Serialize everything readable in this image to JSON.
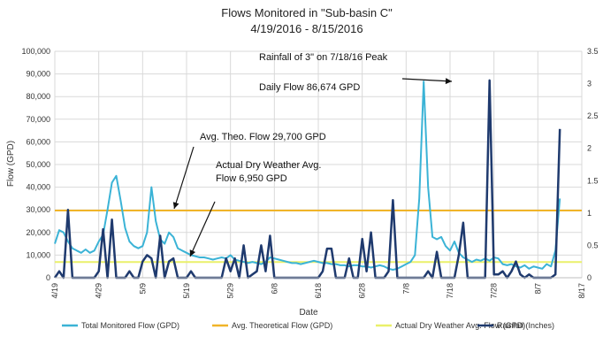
{
  "chart_data": {
    "type": "line",
    "title": "Flows Monitored in \"Sub-basin C\"",
    "subtitle": "4/19/2016 - 8/15/2016",
    "xlabel": "Date",
    "ylabel": "Flow (GPD)",
    "y2label": "",
    "x_ticks": [
      "4/19",
      "4/29",
      "5/9",
      "5/19",
      "5/29",
      "6/8",
      "6/18",
      "6/28",
      "7/8",
      "7/18",
      "7/28",
      "8/7",
      "8/17"
    ],
    "ylim": [
      0,
      100000
    ],
    "y_ticks": [
      "0",
      "10,000",
      "20,000",
      "30,000",
      "40,000",
      "50,000",
      "60,000",
      "70,000",
      "80,000",
      "90,000",
      "100,000"
    ],
    "y2lim": [
      0,
      3.5
    ],
    "y2_ticks": [
      "0",
      "0.5",
      "1",
      "1.5",
      "2",
      "2.5",
      "3",
      "3.5"
    ],
    "grid": true,
    "legend_position": "bottom",
    "series": [
      {
        "name": "Total Monitored Flow (GPD)",
        "axis": "left",
        "color": "#3bb3d6",
        "points": [
          [
            0,
            15000
          ],
          [
            1,
            21000
          ],
          [
            2,
            20000
          ],
          [
            3,
            16000
          ],
          [
            4,
            13000
          ],
          [
            5,
            12000
          ],
          [
            6,
            11000
          ],
          [
            7,
            12500
          ],
          [
            8,
            11000
          ],
          [
            9,
            12000
          ],
          [
            10,
            16000
          ],
          [
            11,
            19000
          ],
          [
            12,
            30000
          ],
          [
            13,
            42000
          ],
          [
            14,
            45000
          ],
          [
            15,
            34000
          ],
          [
            16,
            22000
          ],
          [
            17,
            16000
          ],
          [
            18,
            14000
          ],
          [
            19,
            13000
          ],
          [
            20,
            14000
          ],
          [
            21,
            20000
          ],
          [
            22,
            40000
          ],
          [
            23,
            25000
          ],
          [
            24,
            17000
          ],
          [
            25,
            15000
          ],
          [
            26,
            20000
          ],
          [
            27,
            18000
          ],
          [
            28,
            13000
          ],
          [
            29,
            12000
          ],
          [
            30,
            11000
          ],
          [
            31,
            10000
          ],
          [
            32,
            9500
          ],
          [
            33,
            9000
          ],
          [
            34,
            9000
          ],
          [
            35,
            8500
          ],
          [
            36,
            8000
          ],
          [
            37,
            8500
          ],
          [
            38,
            9000
          ],
          [
            39,
            8500
          ],
          [
            40,
            10000
          ],
          [
            41,
            8000
          ],
          [
            42,
            7500
          ],
          [
            43,
            7000
          ],
          [
            44,
            6500
          ],
          [
            45,
            7000
          ],
          [
            46,
            6500
          ],
          [
            47,
            6000
          ],
          [
            48,
            7000
          ],
          [
            49,
            9000
          ],
          [
            50,
            8500
          ],
          [
            51,
            8000
          ],
          [
            52,
            7500
          ],
          [
            53,
            7000
          ],
          [
            54,
            6500
          ],
          [
            55,
            6500
          ],
          [
            56,
            6000
          ],
          [
            57,
            6500
          ],
          [
            58,
            7000
          ],
          [
            59,
            7500
          ],
          [
            60,
            7000
          ],
          [
            61,
            6500
          ],
          [
            62,
            6500
          ],
          [
            63,
            6000
          ],
          [
            64,
            6000
          ],
          [
            65,
            5500
          ],
          [
            66,
            5500
          ],
          [
            67,
            5000
          ],
          [
            68,
            5500
          ],
          [
            69,
            5500
          ],
          [
            70,
            5000
          ],
          [
            71,
            5000
          ],
          [
            72,
            4500
          ],
          [
            73,
            5000
          ],
          [
            74,
            5500
          ],
          [
            75,
            5000
          ],
          [
            76,
            4000
          ],
          [
            77,
            3500
          ],
          [
            78,
            4000
          ],
          [
            79,
            5000
          ],
          [
            80,
            6000
          ],
          [
            81,
            7000
          ],
          [
            82,
            10000
          ],
          [
            83,
            35000
          ],
          [
            84,
            86674
          ],
          [
            85,
            40000
          ],
          [
            86,
            18000
          ],
          [
            87,
            17000
          ],
          [
            88,
            18000
          ],
          [
            89,
            14000
          ],
          [
            90,
            12000
          ],
          [
            91,
            16000
          ],
          [
            92,
            11000
          ],
          [
            93,
            9000
          ],
          [
            94,
            8000
          ],
          [
            95,
            7000
          ],
          [
            96,
            8000
          ],
          [
            97,
            7500
          ],
          [
            98,
            8500
          ],
          [
            99,
            7500
          ],
          [
            100,
            9000
          ],
          [
            101,
            8500
          ],
          [
            102,
            6000
          ],
          [
            103,
            5500
          ],
          [
            104,
            6000
          ],
          [
            105,
            5000
          ],
          [
            106,
            4500
          ],
          [
            107,
            5500
          ],
          [
            108,
            4000
          ],
          [
            109,
            5000
          ],
          [
            110,
            4500
          ],
          [
            111,
            4000
          ],
          [
            112,
            6000
          ],
          [
            113,
            5000
          ],
          [
            114,
            12000
          ],
          [
            115,
            35000
          ]
        ]
      },
      {
        "name": "Avg. Theoretical Flow (GPD)",
        "axis": "left",
        "color": "#f0b429",
        "constant": 29700
      },
      {
        "name": "Actual Dry Weather Avg. Flow (GPD)",
        "axis": "left",
        "color": "#eaf06a",
        "constant": 6950
      },
      {
        "name": "Rainfall (Inches)",
        "axis": "right",
        "color": "#1f3a6e",
        "points": [
          [
            0,
            0
          ],
          [
            1,
            0.1
          ],
          [
            2,
            0
          ],
          [
            3,
            1.05
          ],
          [
            4,
            0
          ],
          [
            5,
            0
          ],
          [
            6,
            0
          ],
          [
            7,
            0
          ],
          [
            8,
            0
          ],
          [
            9,
            0
          ],
          [
            10,
            0.1
          ],
          [
            11,
            0.75
          ],
          [
            12,
            0
          ],
          [
            13,
            0.9
          ],
          [
            14,
            0
          ],
          [
            15,
            0
          ],
          [
            16,
            0
          ],
          [
            17,
            0.1
          ],
          [
            18,
            0
          ],
          [
            19,
            0
          ],
          [
            20,
            0.25
          ],
          [
            21,
            0.35
          ],
          [
            22,
            0.3
          ],
          [
            23,
            0
          ],
          [
            24,
            0.65
          ],
          [
            25,
            0
          ],
          [
            26,
            0.25
          ],
          [
            27,
            0.3
          ],
          [
            28,
            0
          ],
          [
            29,
            0
          ],
          [
            30,
            0
          ],
          [
            31,
            0.1
          ],
          [
            32,
            0
          ],
          [
            33,
            0
          ],
          [
            34,
            0
          ],
          [
            35,
            0
          ],
          [
            36,
            0
          ],
          [
            37,
            0
          ],
          [
            38,
            0
          ],
          [
            39,
            0.3
          ],
          [
            40,
            0.1
          ],
          [
            41,
            0.3
          ],
          [
            42,
            0
          ],
          [
            43,
            0.5
          ],
          [
            44,
            0
          ],
          [
            45,
            0.05
          ],
          [
            46,
            0.1
          ],
          [
            47,
            0.5
          ],
          [
            48,
            0.1
          ],
          [
            49,
            0.65
          ],
          [
            50,
            0
          ],
          [
            51,
            0
          ],
          [
            52,
            0
          ],
          [
            53,
            0
          ],
          [
            54,
            0
          ],
          [
            55,
            0
          ],
          [
            56,
            0
          ],
          [
            57,
            0
          ],
          [
            58,
            0
          ],
          [
            59,
            0
          ],
          [
            60,
            0
          ],
          [
            61,
            0.1
          ],
          [
            62,
            0.45
          ],
          [
            63,
            0.45
          ],
          [
            64,
            0
          ],
          [
            65,
            0
          ],
          [
            66,
            0
          ],
          [
            67,
            0.3
          ],
          [
            68,
            0
          ],
          [
            69,
            0
          ],
          [
            70,
            0.6
          ],
          [
            71,
            0.1
          ],
          [
            72,
            0.7
          ],
          [
            73,
            0
          ],
          [
            74,
            0
          ],
          [
            75,
            0
          ],
          [
            76,
            0.1
          ],
          [
            77,
            1.2
          ],
          [
            78,
            0
          ],
          [
            79,
            0
          ],
          [
            80,
            0
          ],
          [
            81,
            0
          ],
          [
            82,
            0
          ],
          [
            83,
            0
          ],
          [
            84,
            0
          ],
          [
            85,
            0.1
          ],
          [
            86,
            0
          ],
          [
            87,
            0.4
          ],
          [
            88,
            0
          ],
          [
            89,
            0
          ],
          [
            90,
            0
          ],
          [
            91,
            0
          ],
          [
            92,
            0.35
          ],
          [
            93,
            0.85
          ],
          [
            94,
            0
          ],
          [
            95,
            0
          ],
          [
            96,
            0
          ],
          [
            97,
            0
          ],
          [
            98,
            0
          ],
          [
            99,
            3.05
          ],
          [
            100,
            0.05
          ],
          [
            101,
            0.05
          ],
          [
            102,
            0.1
          ],
          [
            103,
            0
          ],
          [
            104,
            0.1
          ],
          [
            105,
            0.25
          ],
          [
            106,
            0.05
          ],
          [
            107,
            0
          ],
          [
            108,
            0.05
          ],
          [
            109,
            0
          ],
          [
            110,
            0
          ],
          [
            111,
            0
          ],
          [
            112,
            0
          ],
          [
            113,
            0
          ],
          [
            114,
            0.05
          ],
          [
            115,
            2.3
          ]
        ]
      }
    ],
    "annotations": [
      {
        "id": "peak",
        "lines": [
          "Rainfall of 3\" on 7/18/16 Peak",
          "Daily Flow 86,674 GPD"
        ]
      },
      {
        "id": "theo",
        "lines": [
          "Avg. Theo. Flow 29,700 GPD"
        ]
      },
      {
        "id": "dry",
        "lines": [
          "Actual Dry Weather Avg.",
          "Flow 6,950 GPD"
        ]
      }
    ]
  }
}
